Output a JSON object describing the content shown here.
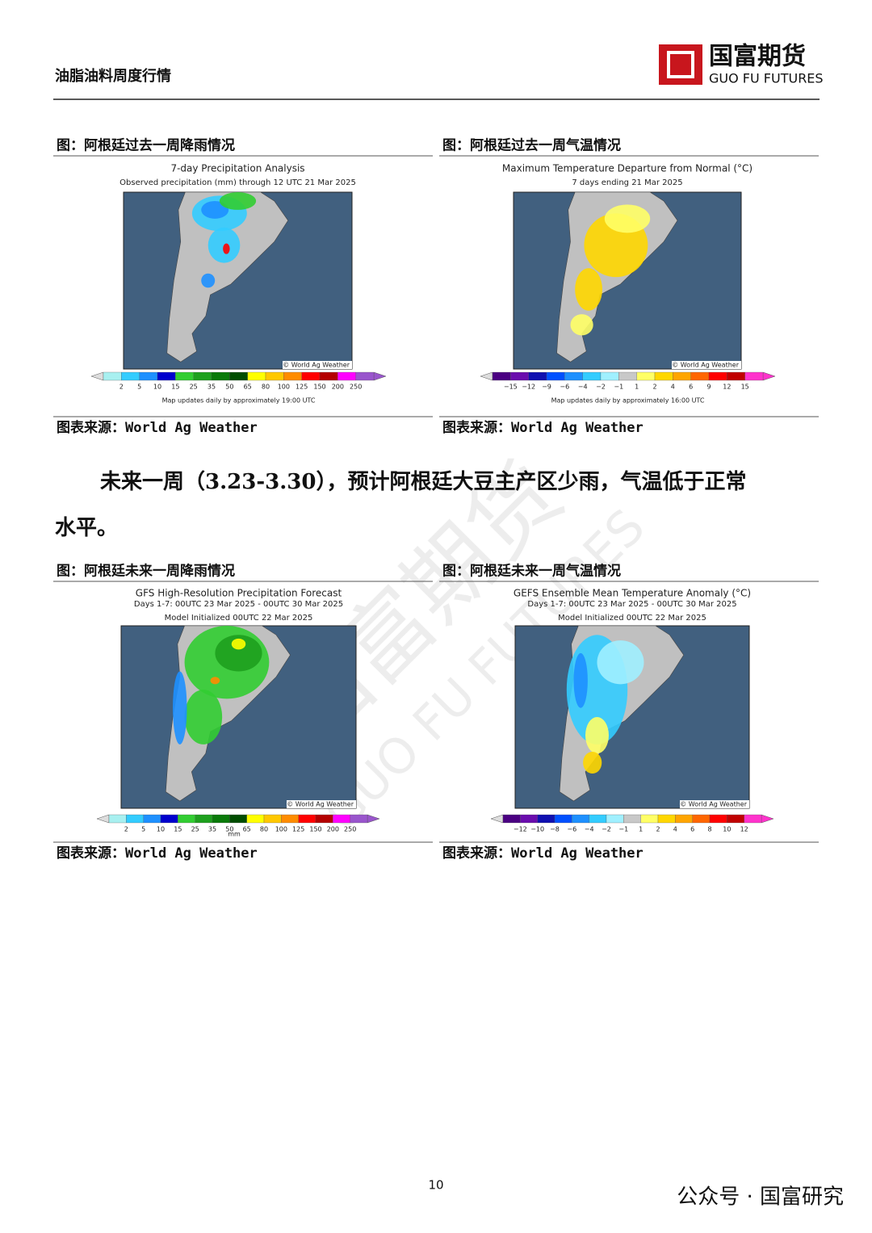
{
  "header": {
    "title": "油脂油料周度行情",
    "logo_cn": "国富期货",
    "logo_en": "GUO FU FUTURES"
  },
  "figures": [
    {
      "caption": "图：阿根廷过去一周降雨情况",
      "map_title": [
        "7-day Precipitation Analysis",
        "Observed precipitation (mm) through 12 UTC 21 Mar 2025"
      ],
      "credit": "© World Ag Weather",
      "scale": [
        "2",
        "5",
        "10",
        "15",
        "25",
        "35",
        "50",
        "65",
        "80",
        "100",
        "125",
        "150",
        "200",
        "250"
      ],
      "footnote": "Map updates daily by approximately 19:00 UTC",
      "source": "图表来源：World Ag Weather"
    },
    {
      "caption": "图：阿根廷过去一周气温情况",
      "map_title": [
        "Maximum Temperature Departure from Normal (°C)",
        "7 days ending 21 Mar 2025"
      ],
      "credit": "© World Ag Weather",
      "scale": [
        "−15",
        "−12",
        "−9",
        "−6",
        "−4",
        "−2",
        "−1",
        "1",
        "2",
        "4",
        "6",
        "9",
        "12",
        "15"
      ],
      "footnote": "Map updates daily by approximately 16:00 UTC",
      "source": "图表来源：World Ag Weather"
    },
    {
      "caption": "图：阿根廷未来一周降雨情况",
      "map_title": [
        "GFS High-Resolution Precipitation Forecast",
        "Days 1-7: 00UTC 23 Mar 2025 - 00UTC 30 Mar 2025",
        "Model Initialized 00UTC 22 Mar 2025"
      ],
      "credit": "© World Ag Weather",
      "scale": [
        "2",
        "5",
        "10",
        "15",
        "25",
        "35",
        "50",
        "65",
        "80",
        "100",
        "125",
        "150",
        "200",
        "250"
      ],
      "unit": "mm",
      "source": "图表来源：World Ag Weather"
    },
    {
      "caption": "图：阿根廷未来一周气温情况",
      "map_title": [
        "GEFS Ensemble Mean Temperature Anomaly (°C)",
        "Days 1-7: 00UTC 23 Mar 2025 - 00UTC 30 Mar 2025",
        "Model Initialized 00UTC 22 Mar 2025"
      ],
      "credit": "© World Ag Weather",
      "scale": [
        "−12",
        "−10",
        "−8",
        "−6",
        "−4",
        "−2",
        "−1",
        "1",
        "2",
        "4",
        "6",
        "8",
        "10",
        "12"
      ],
      "source": "图表来源：World Ag Weather"
    }
  ],
  "paragraph": [
    "未来一周（3.23-3.30），预计阿根廷大豆主产区少雨，气温低于正常",
    "水平。"
  ],
  "page_number": "10",
  "wechat": "公众号 · 国富研究"
}
